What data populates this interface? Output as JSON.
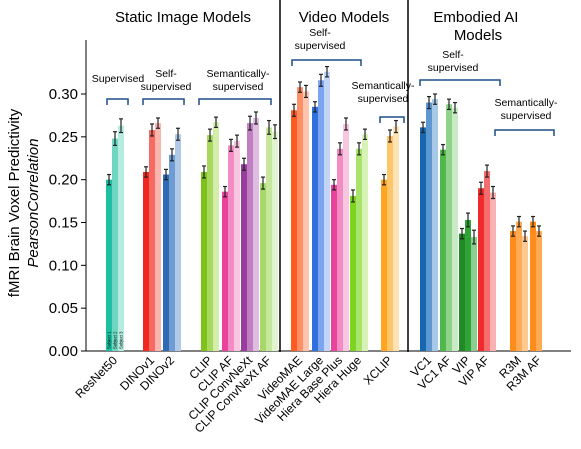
{
  "chart_data": {
    "type": "bar",
    "ylabel": "fMRI Brain Voxel Predictivity",
    "ylabel_sub": "PearsonCorrelation",
    "ylim": [
      0,
      0.35
    ],
    "yticks": [
      0.0,
      0.05,
      0.1,
      0.15,
      0.2,
      0.25,
      0.3
    ],
    "ytick_labels": [
      "0.00",
      "0.05",
      "0.10",
      "0.15",
      "0.20",
      "0.25",
      "0.30"
    ],
    "subject_labels": [
      "Subject 1",
      "Subject 2",
      "Subject 3"
    ],
    "sections": [
      {
        "title": "Static Image Models"
      },
      {
        "title": "Video Models"
      },
      {
        "title": "Embodied AI Models"
      }
    ],
    "groups": [
      {
        "label": "Supervised"
      },
      {
        "label": "Self-supervised"
      },
      {
        "label": "Semantically-supervised"
      },
      {
        "label": "Self-supervised"
      },
      {
        "label": "Semantically-supervised"
      },
      {
        "label": "Self-supervised"
      },
      {
        "label": "Semantically-supervised"
      }
    ],
    "models": [
      {
        "name": "ResNet50",
        "values": [
          0.2,
          0.248,
          0.263
        ],
        "errors": [
          0.006,
          0.008,
          0.008
        ],
        "colors": [
          "#1ebfa0",
          "#6fd6c2",
          "#b6ebe0"
        ]
      },
      {
        "name": "DINOv1",
        "values": [
          0.209,
          0.258,
          0.266
        ],
        "errors": [
          0.006,
          0.007,
          0.006
        ],
        "colors": [
          "#f0281e",
          "#f76a62",
          "#fbb4ae"
        ]
      },
      {
        "name": "DINOv2",
        "values": [
          0.206,
          0.229,
          0.253
        ],
        "errors": [
          0.006,
          0.007,
          0.007
        ],
        "colors": [
          "#2f6bb5",
          "#6f9cd2",
          "#b0c9e8"
        ]
      },
      {
        "name": "CLIP",
        "values": [
          0.209,
          0.252,
          0.267
        ],
        "errors": [
          0.007,
          0.007,
          0.006
        ],
        "colors": [
          "#7cc21a",
          "#a9d85f",
          "#d3edab"
        ]
      },
      {
        "name": "CLIP AF",
        "values": [
          0.186,
          0.24,
          0.245
        ],
        "errors": [
          0.006,
          0.007,
          0.007
        ],
        "colors": [
          "#e8449b",
          "#f28cc2",
          "#f9c6e1"
        ]
      },
      {
        "name": "CLIP ConvNeXt",
        "values": [
          0.218,
          0.266,
          0.272
        ],
        "errors": [
          0.007,
          0.008,
          0.007
        ],
        "colors": [
          "#9a3c9e",
          "#bf7fc2",
          "#dfbce0"
        ]
      },
      {
        "name": "CLIP ConvNeXt AF",
        "values": [
          0.196,
          0.261,
          0.256
        ],
        "errors": [
          0.007,
          0.008,
          0.008
        ],
        "colors": [
          "#a6d96a",
          "#c6e89d",
          "#e2f3cf"
        ]
      },
      {
        "name": "VideoMAE",
        "values": [
          0.281,
          0.308,
          0.303
        ],
        "errors": [
          0.007,
          0.006,
          0.007
        ],
        "colors": [
          "#ff5a1f",
          "#ff8f66",
          "#ffc4ad"
        ]
      },
      {
        "name": "VideoMAE Large",
        "values": [
          0.285,
          0.316,
          0.326
        ],
        "errors": [
          0.006,
          0.007,
          0.006
        ],
        "colors": [
          "#2f6fe0",
          "#7da4ee",
          "#c2d5f7"
        ]
      },
      {
        "name": "Hiera Base Plus",
        "values": [
          0.194,
          0.236,
          0.265
        ],
        "errors": [
          0.006,
          0.007,
          0.007
        ],
        "colors": [
          "#e8449b",
          "#f28cc2",
          "#f9c6e1"
        ]
      },
      {
        "name": "Hiera Huge",
        "values": [
          0.181,
          0.236,
          0.253
        ],
        "errors": [
          0.007,
          0.007,
          0.006
        ],
        "colors": [
          "#7cd421",
          "#a8e36c",
          "#d6f2b5"
        ]
      },
      {
        "name": "XCLIP",
        "values": [
          0.2,
          0.251,
          0.262
        ],
        "errors": [
          0.006,
          0.007,
          0.007
        ],
        "colors": [
          "#ffa620",
          "#ffc56a",
          "#ffe2b4"
        ]
      },
      {
        "name": "VC1",
        "values": [
          0.261,
          0.29,
          0.294
        ],
        "errors": [
          0.006,
          0.007,
          0.006
        ],
        "colors": [
          "#1666b0",
          "#5c97cf",
          "#a8c8e8"
        ]
      },
      {
        "name": "VC1 AF",
        "values": [
          0.235,
          0.288,
          0.284
        ],
        "errors": [
          0.006,
          0.006,
          0.006
        ],
        "colors": [
          "#4fb84a",
          "#8fd38a",
          "#c8eac5"
        ]
      },
      {
        "name": "VIP",
        "values": [
          0.137,
          0.153,
          0.133
        ],
        "errors": [
          0.006,
          0.008,
          0.008
        ],
        "colors": [
          "#1f8a26",
          "#2fa336",
          "#8bcf8f"
        ]
      },
      {
        "name": "VIP AF",
        "values": [
          0.19,
          0.21,
          0.185
        ],
        "errors": [
          0.007,
          0.007,
          0.007
        ],
        "colors": [
          "#ee2a2a",
          "#f56c6c",
          "#f9b1b1"
        ]
      },
      {
        "name": "R3M",
        "values": [
          0.14,
          0.151,
          0.134
        ],
        "errors": [
          0.006,
          0.006,
          0.006
        ],
        "colors": [
          "#ff8c1a",
          "#ffaa55",
          "#ffc98f"
        ]
      },
      {
        "name": "R3M AF",
        "values": [
          0.151,
          0.14,
          0.0
        ],
        "errors": [
          0.006,
          0.006,
          0.0
        ],
        "colors": [
          "#ff8c1a",
          "#ffaa55",
          "#ffc98f"
        ]
      }
    ]
  }
}
